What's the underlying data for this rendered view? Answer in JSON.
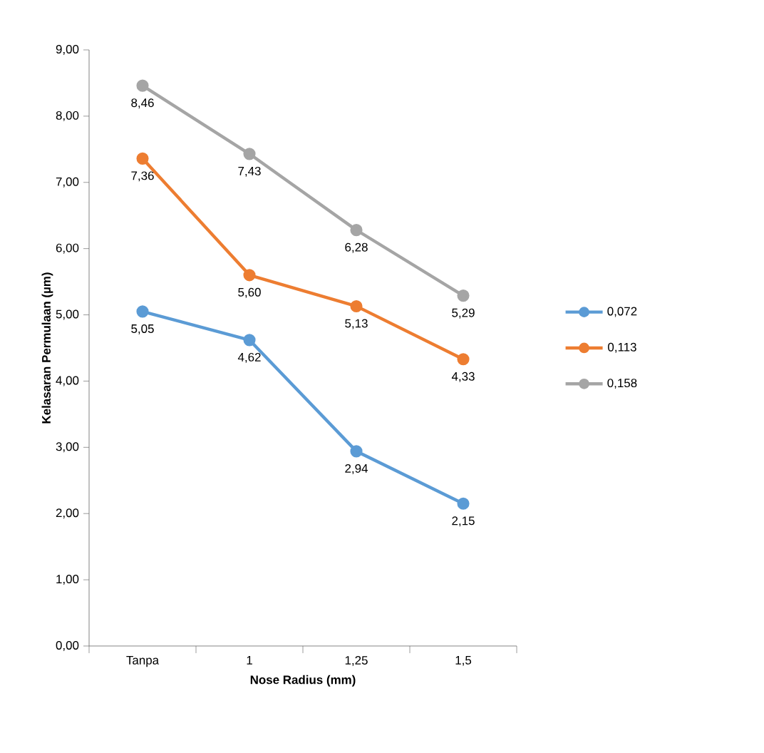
{
  "chart_data": {
    "type": "line",
    "xlabel": "Nose Radius (mm)",
    "ylabel": "Kelasaran Permulaan (µm)",
    "categories": [
      "Tanpa",
      "1",
      "1,25",
      "1,5"
    ],
    "series": [
      {
        "name": "0,072",
        "color": "#5b9bd5",
        "values": [
          5.05,
          4.62,
          2.94,
          2.15
        ],
        "value_labels": [
          "5,05",
          "4,62",
          "2,94",
          "2,15"
        ]
      },
      {
        "name": "0,113",
        "color": "#ed7d31",
        "values": [
          7.36,
          5.6,
          5.13,
          4.33
        ],
        "value_labels": [
          "7,36",
          "5,60",
          "5,13",
          "4,33"
        ]
      },
      {
        "name": "0,158",
        "color": "#a5a5a5",
        "values": [
          8.46,
          7.43,
          6.28,
          5.29
        ],
        "value_labels": [
          "8,46",
          "7,43",
          "6,28",
          "5,29"
        ]
      }
    ],
    "ylim": [
      0,
      9
    ],
    "yticks": [
      {
        "value": 0,
        "label": "0,00"
      },
      {
        "value": 1,
        "label": "1,00"
      },
      {
        "value": 2,
        "label": "2,00"
      },
      {
        "value": 3,
        "label": "3,00"
      },
      {
        "value": 4,
        "label": "4,00"
      },
      {
        "value": 5,
        "label": "5,00"
      },
      {
        "value": 6,
        "label": "6,00"
      },
      {
        "value": 7,
        "label": "7,00"
      },
      {
        "value": 8,
        "label": "8,00"
      },
      {
        "value": 9,
        "label": "9,00"
      }
    ],
    "grid": false,
    "legend": "right",
    "marker": "circle",
    "line_style": "solid"
  }
}
